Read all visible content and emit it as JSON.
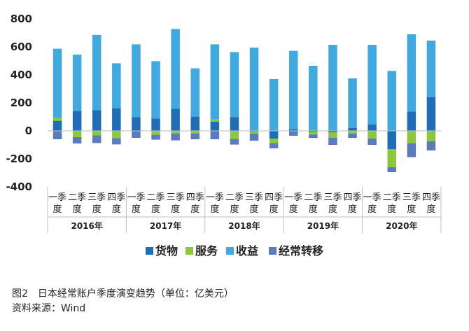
{
  "chart_data": {
    "type": "bar",
    "stacked": true,
    "title": "",
    "xlabel": "",
    "ylabel": "",
    "ylim": [
      -400,
      800
    ],
    "yticks": [
      -400,
      -200,
      0,
      200,
      400,
      600,
      800
    ],
    "grid": false,
    "legend_position": "bottom",
    "categories": [
      "2016年 一季度",
      "2016年 二季度",
      "2016年 三季度",
      "2016年 四季度",
      "2017年 一季度",
      "2017年 二季度",
      "2017年 三季度",
      "2017年 四季度",
      "2018年 一季度",
      "2018年 二季度",
      "2018年 三季度",
      "2018年 四季度",
      "2019年 一季度",
      "2019年 二季度",
      "2019年 三季度",
      "2019年 四季度",
      "2020年 一季度",
      "2020年 二季度",
      "2020年 三季度",
      "2020年 四季度"
    ],
    "quarter_labels": [
      "一季度",
      "二季度",
      "三季度",
      "四季度"
    ],
    "years": [
      "2016年",
      "2017年",
      "2018年",
      "2019年",
      "2020年"
    ],
    "series": [
      {
        "name": "货物",
        "color": "#1f6db6",
        "values": [
          72,
          140,
          148,
          160,
          98,
          88,
          158,
          102,
          65,
          98,
          -5,
          -55,
          12,
          -8,
          -10,
          20,
          45,
          -130,
          138,
          240
        ]
      },
      {
        "name": "服务",
        "color": "#8dc63f",
        "values": [
          20,
          -45,
          -32,
          -52,
          0,
          -28,
          -18,
          -18,
          18,
          -58,
          -15,
          -32,
          0,
          -18,
          -40,
          -20,
          -55,
          -130,
          -88,
          -75
        ]
      },
      {
        "name": "收益",
        "color": "#3fa9e0",
        "values": [
          495,
          405,
          538,
          323,
          520,
          410,
          570,
          345,
          535,
          465,
          595,
          370,
          560,
          465,
          615,
          355,
          570,
          428,
          552,
          405
        ]
      },
      {
        "name": "经常转移",
        "color": "#5b7bbd",
        "values": [
          -60,
          -45,
          -55,
          -45,
          -50,
          -35,
          -50,
          -42,
          -60,
          -40,
          -50,
          -38,
          -35,
          -25,
          -50,
          -30,
          -45,
          -35,
          -100,
          -65
        ]
      }
    ]
  },
  "caption": {
    "title": "图2　日本经常账户季度演变趋势（单位：亿美元）",
    "source": "资料来源：Wind"
  }
}
